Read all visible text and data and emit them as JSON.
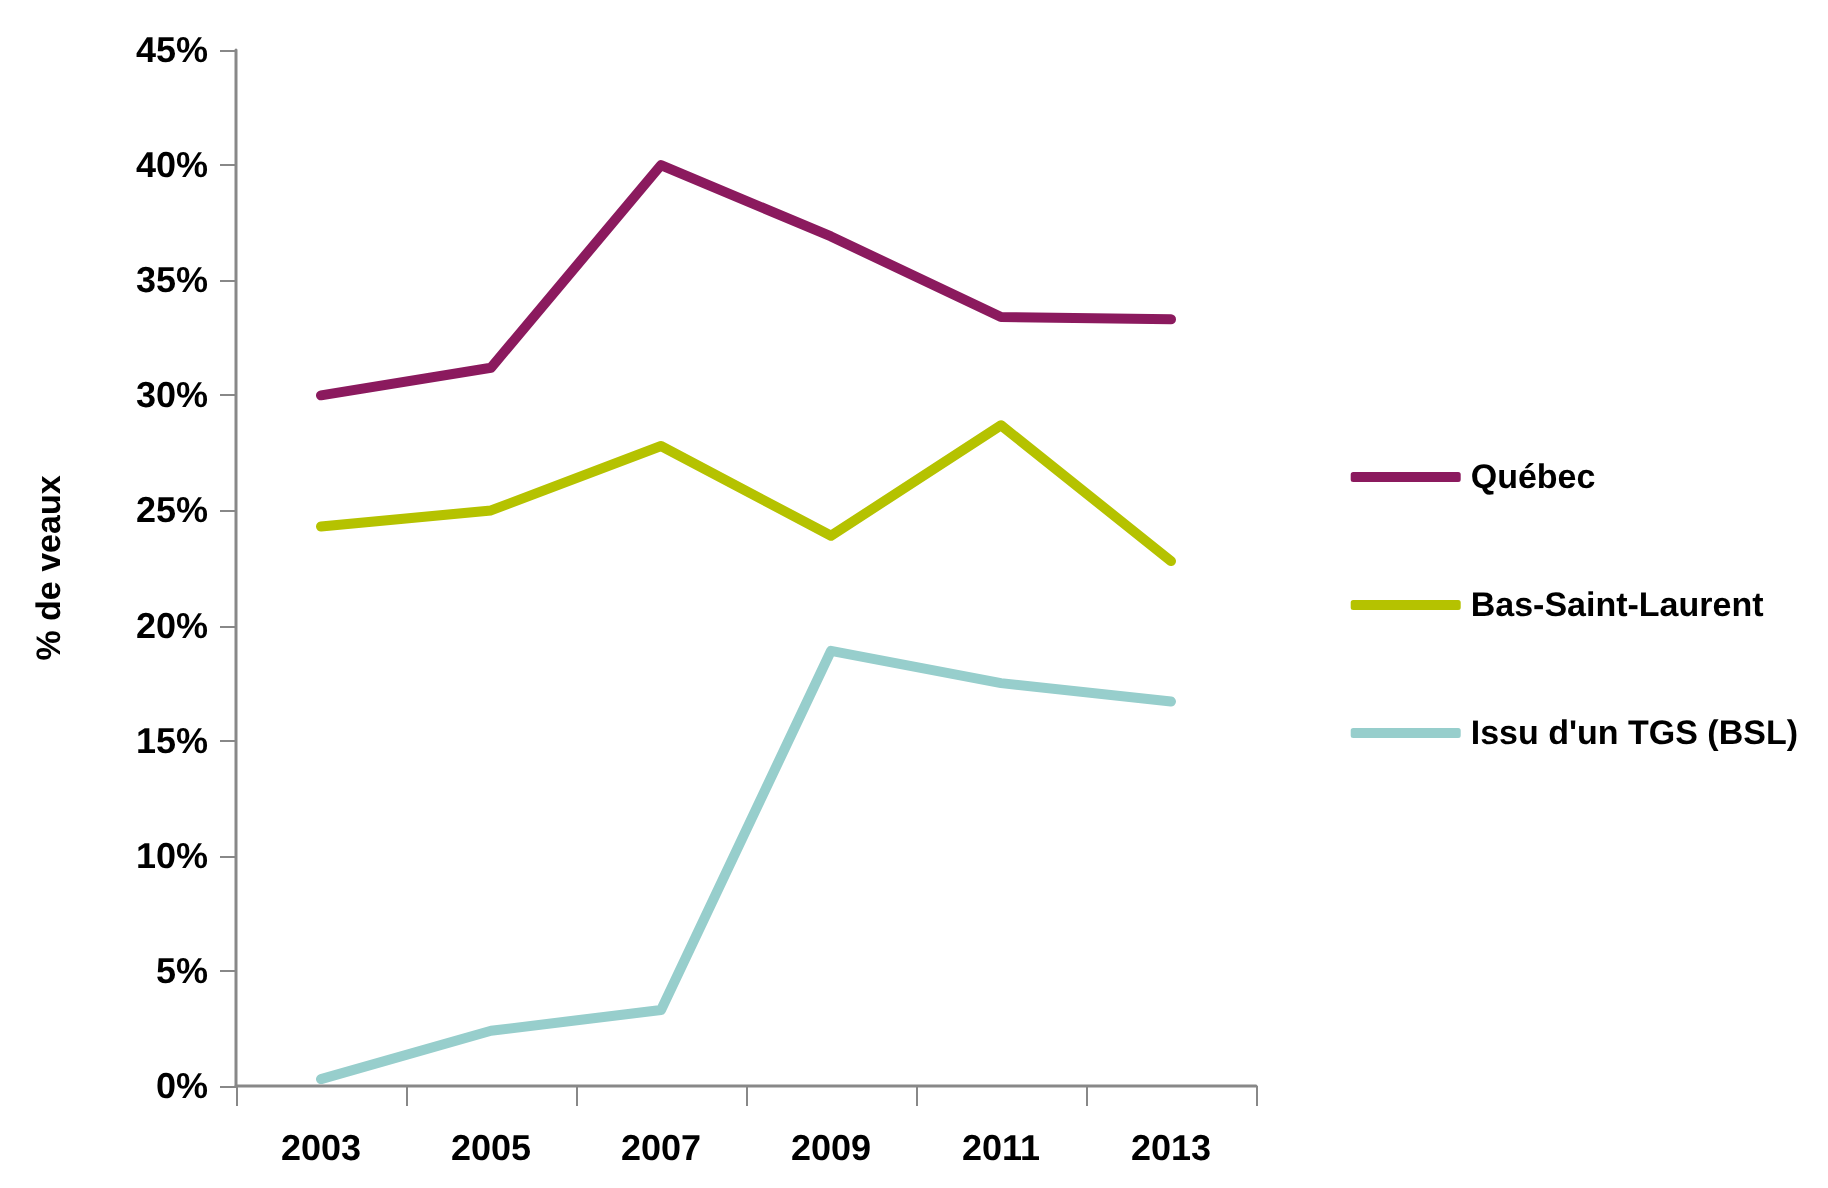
{
  "chart_data": {
    "type": "line",
    "ylabel": "% de veaux",
    "categories": [
      "2003",
      "2005",
      "2007",
      "2009",
      "2011",
      "2013"
    ],
    "series": [
      {
        "name": "Québec",
        "color": "#8b1a5e",
        "values": [
          30.0,
          31.2,
          40.0,
          36.9,
          33.4,
          33.3
        ]
      },
      {
        "name": "Bas-Saint-Laurent",
        "color": "#b5c200",
        "values": [
          24.3,
          25.0,
          27.8,
          23.9,
          28.7,
          22.8
        ]
      },
      {
        "name": "Issu d'un TGS (BSL)",
        "color": "#97cecc",
        "values": [
          0.3,
          2.4,
          3.3,
          18.9,
          17.5,
          16.7
        ]
      }
    ],
    "ylim": [
      0,
      45
    ],
    "yticks": [
      {
        "value": 0,
        "label": "0%"
      },
      {
        "value": 5,
        "label": "5%"
      },
      {
        "value": 10,
        "label": "10%"
      },
      {
        "value": 15,
        "label": "15%"
      },
      {
        "value": 20,
        "label": "20%"
      },
      {
        "value": 25,
        "label": "25%"
      },
      {
        "value": 30,
        "label": "30%"
      },
      {
        "value": 35,
        "label": "35%"
      },
      {
        "value": 40,
        "label": "40%"
      },
      {
        "value": 45,
        "label": "45%"
      }
    ],
    "grid": false,
    "legend": "right",
    "marker": "none",
    "line_style": "solid"
  }
}
